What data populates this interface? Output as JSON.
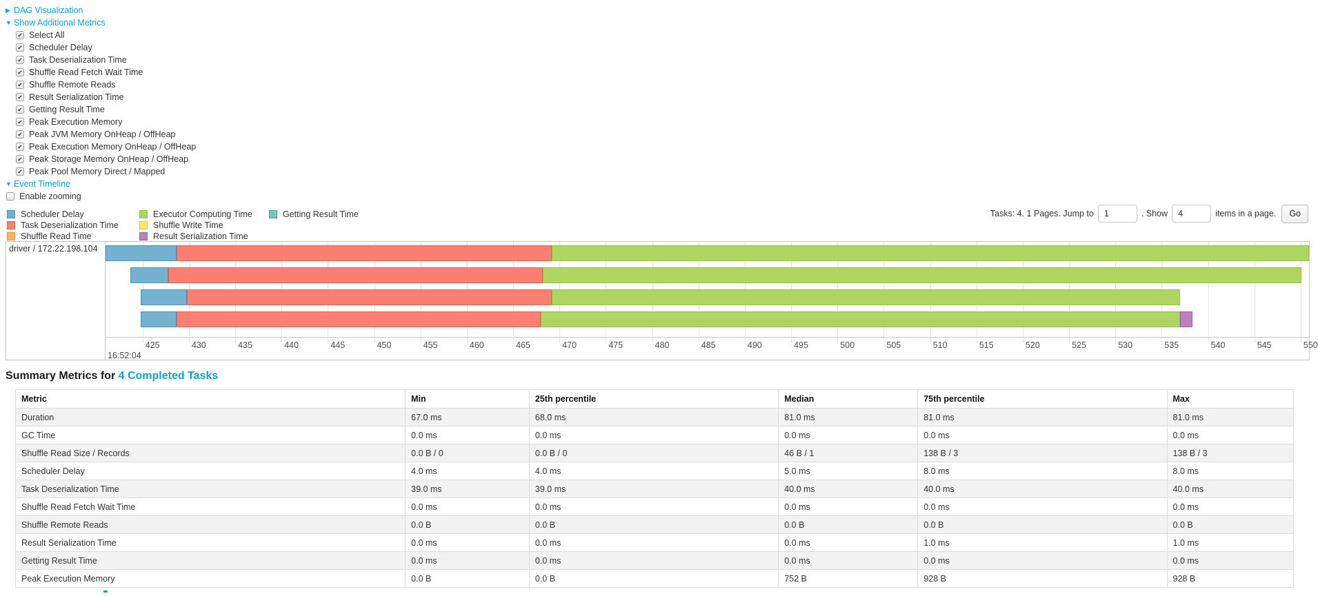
{
  "toggles": {
    "dag": "DAG Visualization",
    "additional_metrics": "Show Additional Metrics",
    "event_timeline": "Event Timeline"
  },
  "additional_metrics": {
    "items": [
      {
        "label": "Select All",
        "checked": true
      },
      {
        "label": "Scheduler Delay",
        "checked": true
      },
      {
        "label": "Task Deserialization Time",
        "checked": true
      },
      {
        "label": "Shuffle Read Fetch Wait Time",
        "checked": true
      },
      {
        "label": "Shuffle Remote Reads",
        "checked": true
      },
      {
        "label": "Result Serialization Time",
        "checked": true
      },
      {
        "label": "Getting Result Time",
        "checked": true
      },
      {
        "label": "Peak Execution Memory",
        "checked": true
      },
      {
        "label": "Peak JVM Memory OnHeap / OffHeap",
        "checked": true
      },
      {
        "label": "Peak Execution Memory OnHeap / OffHeap",
        "checked": true
      },
      {
        "label": "Peak Storage Memory OnHeap / OffHeap",
        "checked": true
      },
      {
        "label": "Peak Pool Memory Direct / Mapped",
        "checked": true
      }
    ]
  },
  "enable_zooming": {
    "label": "Enable zooming",
    "checked": false
  },
  "pagination": {
    "prefix": "Tasks: 4. 1 Pages. Jump to",
    "jump_value": "1",
    "middle": ". Show",
    "show_value": "4",
    "suffix": "items in a page.",
    "go_label": "Go"
  },
  "event_timeline": {
    "series": {
      "scheduler_delay": {
        "label": "Scheduler Delay",
        "fill": "#74B2D0",
        "border": "#4695BE"
      },
      "task_deserialization": {
        "label": "Task Deserialization Time",
        "fill": "#FB8072",
        "border": "#E65F53"
      },
      "shuffle_read": {
        "label": "Shuffle Read Time",
        "fill": "#FDB462",
        "border": "#E8953A"
      },
      "executor_computing": {
        "label": "Executor Computing Time",
        "fill": "#AED462",
        "border": "#93C24B"
      },
      "shuffle_write": {
        "label": "Shuffle Write Time",
        "fill": "#F7E967",
        "border": "#D9C839"
      },
      "result_serialization": {
        "label": "Result Serialization Time",
        "fill": "#BC80BD",
        "border": "#A45FA6"
      },
      "getting_result": {
        "label": "Getting Result Time",
        "fill": "#76C7B7",
        "border": "#46A492"
      }
    },
    "legend_columns": [
      [
        "scheduler_delay",
        "task_deserialization",
        "shuffle_read"
      ],
      [
        "executor_computing",
        "shuffle_write",
        "result_serialization"
      ],
      [
        "getting_result"
      ]
    ],
    "timeline": {
      "group_label": "driver / 172.22.198.104",
      "axis": {
        "min": 421.0,
        "max": 550.9,
        "first_tick": 425,
        "last_tick": 550,
        "tick_step": 5,
        "major_label": "16:52:04"
      },
      "tasks": [
        {
          "segments": [
            {
              "key": "scheduler_delay",
              "start": 421.0,
              "end": 428.7
            },
            {
              "key": "task_deserialization",
              "start": 428.7,
              "end": 469.2
            },
            {
              "key": "executor_computing",
              "start": 469.2,
              "end": 550.9
            }
          ]
        },
        {
          "segments": [
            {
              "key": "scheduler_delay",
              "start": 423.7,
              "end": 427.8
            },
            {
              "key": "task_deserialization",
              "start": 427.8,
              "end": 468.2
            },
            {
              "key": "executor_computing",
              "start": 468.2,
              "end": 550.1
            }
          ]
        },
        {
          "segments": [
            {
              "key": "scheduler_delay",
              "start": 424.8,
              "end": 429.8
            },
            {
              "key": "task_deserialization",
              "start": 429.8,
              "end": 469.2
            },
            {
              "key": "executor_computing",
              "start": 469.2,
              "end": 537.0
            }
          ]
        },
        {
          "segments": [
            {
              "key": "scheduler_delay",
              "start": 424.8,
              "end": 428.7
            },
            {
              "key": "task_deserialization",
              "start": 428.7,
              "end": 468.0
            },
            {
              "key": "executor_computing",
              "start": 468.0,
              "end": 537.0
            },
            {
              "key": "result_serialization",
              "start": 537.0,
              "end": 538.3
            }
          ]
        }
      ]
    }
  },
  "summary_table": {
    "heading_prefix": "Summary Metrics for ",
    "heading_link": "4 Completed Tasks",
    "columns": [
      "Metric",
      "Min",
      "25th percentile",
      "Median",
      "75th percentile",
      "Max"
    ],
    "column_widths": [
      "30.5%",
      "9.7%",
      "19.5%",
      "10.9%",
      "19.5%",
      "9.9%"
    ],
    "rows": [
      {
        "metric": "Duration",
        "values": [
          "67.0 ms",
          "68.0 ms",
          "81.0 ms",
          "81.0 ms",
          "81.0 ms"
        ]
      },
      {
        "metric": "GC Time",
        "values": [
          "0.0 ms",
          "0.0 ms",
          "0.0 ms",
          "0.0 ms",
          "0.0 ms"
        ]
      },
      {
        "metric": "Shuffle Read Size / Records",
        "values": [
          "0.0 B / 0",
          "0.0 B / 0",
          "46 B / 1",
          "138 B / 3",
          "138 B / 3"
        ]
      },
      {
        "metric": "Scheduler Delay",
        "values": [
          "4.0 ms",
          "4.0 ms",
          "5.0 ms",
          "8.0 ms",
          "8.0 ms"
        ]
      },
      {
        "metric": "Task Deserialization Time",
        "values": [
          "39.0 ms",
          "39.0 ms",
          "40.0 ms",
          "40.0 ms",
          "40.0 ms"
        ]
      },
      {
        "metric": "Shuffle Read Fetch Wait Time",
        "values": [
          "0.0 ms",
          "0.0 ms",
          "0.0 ms",
          "0.0 ms",
          "0.0 ms"
        ]
      },
      {
        "metric": "Shuffle Remote Reads",
        "values": [
          "0.0 B",
          "0.0 B",
          "0.0 B",
          "0.0 B",
          "0.0 B"
        ]
      },
      {
        "metric": "Result Serialization Time",
        "values": [
          "0.0 ms",
          "0.0 ms",
          "0.0 ms",
          "1.0 ms",
          "1.0 ms"
        ]
      },
      {
        "metric": "Getting Result Time",
        "values": [
          "0.0 ms",
          "0.0 ms",
          "0.0 ms",
          "0.0 ms",
          "0.0 ms"
        ]
      },
      {
        "metric": "Peak Execution Memory",
        "values": [
          "0.0 B",
          "0.0 B",
          "752 B",
          "928 B",
          "928 B"
        ]
      }
    ]
  }
}
